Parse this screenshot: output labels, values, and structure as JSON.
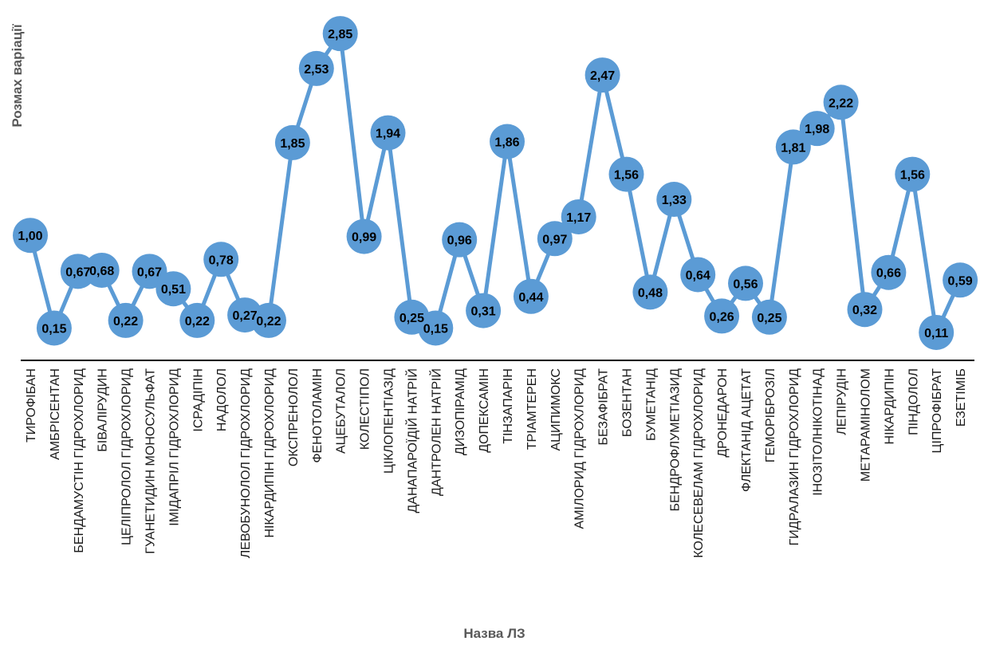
{
  "chart_data": {
    "type": "line",
    "xlabel": "Назва ЛЗ",
    "ylabel": "Розмах варіації",
    "ylim": [
      0,
      2.9
    ],
    "grid": false,
    "categories": [
      "ТИРОФІБАН",
      "АМБРІСЕНТАН",
      "БЕНДАМУСТІН ГІДРОХЛОРИД",
      "БІВАЛІРУДИН",
      "ЦЕЛІПРОЛОЛ ГІДРОХЛОРИД",
      "ГУАНЕТИДИН МОНОСУЛЬФАТ",
      "ІМІДАПРІЛ ГІДРОХЛОРИД",
      "ІСРАДІПІН",
      "НАДОЛОЛ",
      "ЛЕВОБУНОЛОЛ ГІДРОХЛОРИД",
      "НІКАРДИПІН ГІДРОХЛОРИД",
      "ОКСПРЕНОЛОЛ",
      "ФЕНОТОЛАМІН",
      "АЦЕБУТАЛОЛ",
      "КОЛЕСТІПОЛ",
      "ЦІКЛОПЕНТІАЗІД",
      "ДАНАПАРОЇДІЙ  НАТРІЙ",
      "ДАНТРОЛЕН НАТРІЙ",
      "ДИЗОПІРАМІД",
      "ДОПЕКСАМІН",
      "ТІНЗАПАРІН",
      "ТРІАМТЕРЕН",
      "АЦИПИМОКС",
      "АМІЛОРИД ГІДРОХЛОРИД",
      "БЕЗАФІБРАТ",
      "БОЗЕНТАН",
      "БУМЕТАНІД",
      "БЕНДРОФЛУМЕТІАЗИД",
      "КОЛЕСЕВЕЛАМ ГІДРОХЛОРИД",
      "ДРОНЕДАРОН",
      "ФЛЕКТАНІД АЦЕТАТ",
      "ГЕМОРІБРОЗІЛ",
      "ГИДРАЛАЗИН ГІДРОХЛОРИД",
      "ІНОЗІТОЛНІКОТІНАД",
      "ЛЕПІРУДІН",
      "МЕТАРАМІНОЛОМ",
      "НІКАРДИПІН",
      "ПІНДОЛОЛ",
      "ЦІПРОФІБРАТ",
      "ЕЗЕТІМІБ"
    ],
    "values": [
      1.0,
      0.15,
      0.67,
      0.68,
      0.22,
      0.67,
      0.51,
      0.22,
      0.78,
      0.27,
      0.22,
      1.85,
      2.53,
      2.85,
      0.99,
      1.94,
      0.25,
      0.15,
      0.96,
      0.31,
      1.86,
      0.44,
      0.97,
      1.17,
      2.47,
      1.56,
      0.48,
      1.33,
      0.64,
      0.26,
      0.56,
      0.25,
      1.81,
      1.98,
      2.22,
      0.32,
      0.66,
      1.56,
      0.11,
      0.59
    ],
    "data_labels": [
      "1,00",
      "0,15",
      "0,67",
      "0,68",
      "0,22",
      "0,67",
      "0,51",
      "0,22",
      "0,78",
      "0,27",
      "0,22",
      "1,85",
      "2,53",
      "2,85",
      "0,99",
      "1,94",
      "0,25",
      "0,15",
      "0,96",
      "0,31",
      "1,86",
      "0,44",
      "0,97",
      "1,17",
      "2,47",
      "1,56",
      "0,48",
      "1,33",
      "0,64",
      "0,26",
      "0,56",
      "0,25",
      "1,81",
      "1,98",
      "2,22",
      "0,32",
      "0,66",
      "1,56",
      "0,11",
      "0,59"
    ],
    "colors": {
      "line": "#5B9BD5",
      "marker": "#5B9BD5",
      "axis": "#000000"
    }
  }
}
